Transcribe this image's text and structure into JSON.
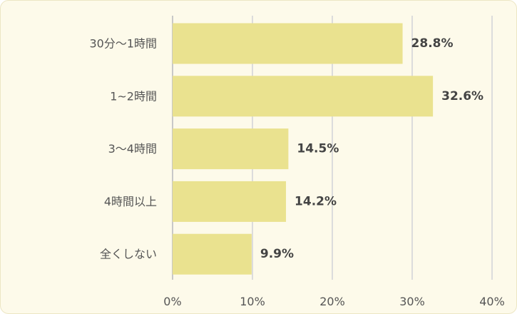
{
  "chart_data": {
    "type": "bar",
    "orientation": "horizontal",
    "title": "",
    "xlabel": "",
    "ylabel": "",
    "categories": [
      "30分〜1時間",
      "1~2時間",
      "3〜4時間",
      "4時間以上",
      "全くしない"
    ],
    "values": [
      28.8,
      32.6,
      14.5,
      14.2,
      9.9
    ],
    "value_labels": [
      "28.8%",
      "32.6%",
      "14.5%",
      "14.2%",
      "9.9%"
    ],
    "xlim": [
      0,
      40
    ],
    "x_ticks": [
      0,
      10,
      20,
      30,
      40
    ],
    "x_tick_labels": [
      "0%",
      "10%",
      "20%",
      "30%",
      "40%"
    ],
    "grid": "vertical",
    "legend": "none",
    "colors": {
      "bar": "#eae28f",
      "grid": "#dcdcdc",
      "background": "#fdfaea",
      "text": "#555555"
    }
  }
}
